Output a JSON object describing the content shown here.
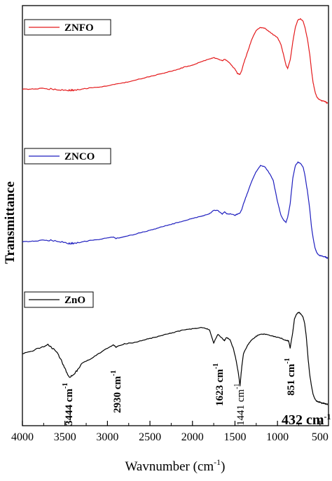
{
  "chart_data": {
    "type": "line",
    "xlabel": "Wavnumber (cm",
    "xlabel_sup": "-1",
    "xlabel_close": ")",
    "ylabel": "Transmittance",
    "xlim": [
      4000,
      400
    ],
    "x_ticks": [
      {
        "value": 4000,
        "label": "4000"
      },
      {
        "value": 3500,
        "label": "3500"
      },
      {
        "value": 3000,
        "label": "3000"
      },
      {
        "value": 2500,
        "label": "2500"
      },
      {
        "value": 2000,
        "label": "2000"
      },
      {
        "value": 1500,
        "label": "1500"
      },
      {
        "value": 1000,
        "label": "1000"
      },
      {
        "value": 500,
        "label": "500"
      }
    ],
    "series": [
      {
        "name": "ZNFO",
        "color": "#e41a1c",
        "x": [
          4000,
          3900,
          3800,
          3700,
          3600,
          3500,
          3450,
          3400,
          3300,
          3200,
          3100,
          3000,
          2900,
          2800,
          2700,
          2600,
          2500,
          2400,
          2300,
          2200,
          2100,
          2000,
          1900,
          1800,
          1750,
          1700,
          1650,
          1623,
          1600,
          1550,
          1500,
          1470,
          1441,
          1420,
          1400,
          1350,
          1300,
          1250,
          1200,
          1150,
          1100,
          1050,
          1000,
          960,
          930,
          900,
          880,
          850,
          820,
          790,
          760,
          730,
          700,
          680,
          650,
          620,
          600,
          580,
          560,
          540,
          520,
          500,
          480,
          460,
          440,
          432,
          420,
          410
        ],
        "y": [
          0.27,
          0.272,
          0.276,
          0.275,
          0.27,
          0.262,
          0.26,
          0.262,
          0.272,
          0.283,
          0.292,
          0.302,
          0.318,
          0.333,
          0.351,
          0.372,
          0.392,
          0.412,
          0.432,
          0.452,
          0.48,
          0.5,
          0.53,
          0.56,
          0.57,
          0.56,
          0.54,
          0.555,
          0.545,
          0.51,
          0.46,
          0.42,
          0.41,
          0.45,
          0.51,
          0.63,
          0.75,
          0.83,
          0.86,
          0.85,
          0.82,
          0.79,
          0.76,
          0.7,
          0.6,
          0.5,
          0.47,
          0.55,
          0.72,
          0.86,
          0.93,
          0.94,
          0.92,
          0.87,
          0.76,
          0.6,
          0.45,
          0.33,
          0.25,
          0.2,
          0.18,
          0.17,
          0.16,
          0.16,
          0.15,
          0.15,
          0.14,
          0.14
        ]
      },
      {
        "name": "ZNCO",
        "color": "#1f1fbf",
        "x": [
          4000,
          3900,
          3800,
          3700,
          3600,
          3500,
          3450,
          3400,
          3300,
          3200,
          3100,
          3000,
          2930,
          2900,
          2800,
          2700,
          2600,
          2500,
          2400,
          2300,
          2200,
          2100,
          2000,
          1900,
          1800,
          1750,
          1700,
          1650,
          1623,
          1600,
          1550,
          1500,
          1470,
          1441,
          1420,
          1400,
          1350,
          1300,
          1250,
          1200,
          1150,
          1100,
          1050,
          1000,
          960,
          930,
          900,
          880,
          851,
          820,
          790,
          760,
          730,
          700,
          680,
          650,
          620,
          600,
          580,
          560,
          540,
          520,
          500,
          480,
          460,
          440,
          432,
          420,
          410
        ],
        "y": [
          0.27,
          0.275,
          0.28,
          0.285,
          0.28,
          0.265,
          0.255,
          0.258,
          0.27,
          0.282,
          0.292,
          0.305,
          0.31,
          0.3,
          0.315,
          0.332,
          0.352,
          0.37,
          0.392,
          0.412,
          0.432,
          0.452,
          0.472,
          0.492,
          0.512,
          0.545,
          0.54,
          0.51,
          0.53,
          0.515,
          0.51,
          0.5,
          0.51,
          0.52,
          0.55,
          0.6,
          0.7,
          0.8,
          0.88,
          0.93,
          0.92,
          0.87,
          0.8,
          0.62,
          0.5,
          0.46,
          0.44,
          0.48,
          0.6,
          0.82,
          0.93,
          0.96,
          0.95,
          0.92,
          0.86,
          0.72,
          0.55,
          0.4,
          0.3,
          0.22,
          0.18,
          0.16,
          0.15,
          0.15,
          0.14,
          0.14,
          0.14,
          0.13,
          0.13
        ]
      },
      {
        "name": "ZnO",
        "color": "#000000",
        "x": [
          4000,
          3900,
          3800,
          3700,
          3600,
          3550,
          3500,
          3450,
          3400,
          3350,
          3300,
          3200,
          3100,
          3000,
          2930,
          2900,
          2800,
          2700,
          2600,
          2500,
          2400,
          2300,
          2200,
          2100,
          2000,
          1900,
          1850,
          1800,
          1750,
          1700,
          1650,
          1623,
          1600,
          1560,
          1520,
          1490,
          1460,
          1441,
          1420,
          1400,
          1350,
          1300,
          1250,
          1200,
          1150,
          1100,
          1050,
          1000,
          950,
          900,
          870,
          851,
          820,
          800,
          780,
          760,
          740,
          720,
          700,
          680,
          660,
          640,
          620,
          600,
          580,
          560,
          540,
          520,
          500,
          480,
          460,
          440,
          432,
          420,
          410
        ],
        "y": [
          0.5,
          0.52,
          0.55,
          0.58,
          0.52,
          0.45,
          0.36,
          0.28,
          0.3,
          0.35,
          0.41,
          0.45,
          0.5,
          0.55,
          0.58,
          0.56,
          0.59,
          0.6,
          0.62,
          0.64,
          0.66,
          0.68,
          0.7,
          0.72,
          0.73,
          0.74,
          0.735,
          0.72,
          0.6,
          0.68,
          0.64,
          0.62,
          0.65,
          0.63,
          0.55,
          0.45,
          0.32,
          0.2,
          0.38,
          0.5,
          0.58,
          0.63,
          0.66,
          0.68,
          0.68,
          0.67,
          0.66,
          0.65,
          0.64,
          0.62,
          0.62,
          0.55,
          0.7,
          0.82,
          0.86,
          0.88,
          0.88,
          0.86,
          0.84,
          0.78,
          0.65,
          0.45,
          0.3,
          0.2,
          0.12,
          0.08,
          0.06,
          0.05,
          0.05,
          0.04,
          0.04,
          0.035,
          0.035,
          0.03,
          0.03
        ]
      }
    ],
    "annotations": [
      {
        "text": "3444 cm",
        "sup": "-1",
        "x": 3444,
        "series": "ZnO",
        "style": "bold"
      },
      {
        "text": "2930 cm",
        "sup": "-1",
        "x": 2930,
        "series": "ZnO",
        "style": "bold"
      },
      {
        "text": "1623 cm",
        "sup": "-1",
        "x": 1623,
        "series": "ZnO",
        "style": "bold"
      },
      {
        "text": "1441 cm",
        "sup": "-1",
        "x": 1441,
        "series": "ZnO",
        "style": "normal"
      },
      {
        "text": "851 cm",
        "sup": "-1",
        "x": 851,
        "series": "ZnO",
        "style": "bold"
      },
      {
        "text": "432 cm",
        "sup": "-1",
        "x": 432,
        "series": "ZnO",
        "style": "big"
      }
    ],
    "legend": [
      {
        "series": "ZNFO",
        "label": "ZNFO"
      },
      {
        "series": "ZNCO",
        "label": "ZNCO"
      },
      {
        "series": "ZnO",
        "label": "ZnO"
      }
    ],
    "grid": false,
    "y_ticks": false,
    "layout": "stacked"
  }
}
